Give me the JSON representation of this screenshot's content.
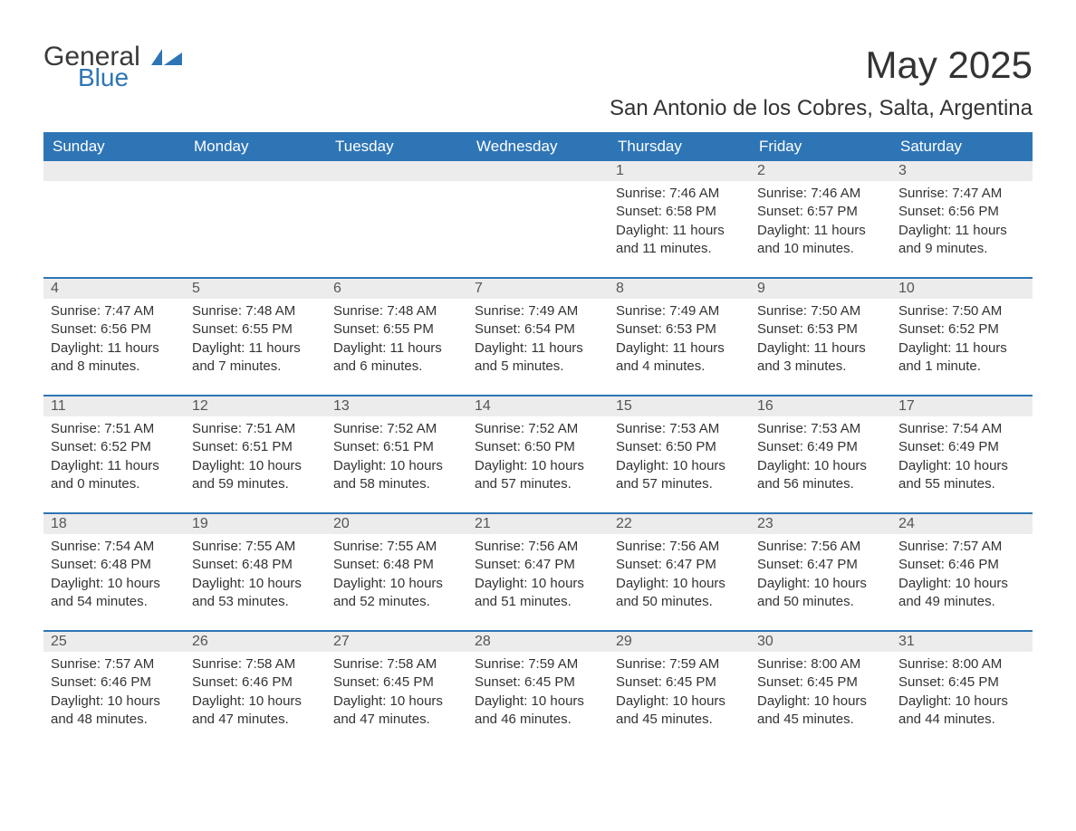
{
  "colors": {
    "header_bg": "#2e75b6",
    "header_text": "#ffffff",
    "daynum_bg": "#ececec",
    "daynum_text": "#555555",
    "body_text": "#333333",
    "row_border": "#2e75b6",
    "page_bg": "#ffffff",
    "logo_blue": "#2e75b6"
  },
  "typography": {
    "title_fontsize": 42,
    "subtitle_fontsize": 24,
    "weekday_fontsize": 17,
    "daynum_fontsize": 16,
    "body_fontsize": 15,
    "font_family": "Arial"
  },
  "logo": {
    "text1": "General",
    "text2": "Blue"
  },
  "title": "May 2025",
  "subtitle": "San Antonio de los Cobres, Salta, Argentina",
  "weekdays": [
    "Sunday",
    "Monday",
    "Tuesday",
    "Wednesday",
    "Thursday",
    "Friday",
    "Saturday"
  ],
  "weeks": [
    [
      {
        "n": "",
        "sunrise": "",
        "sunset": "",
        "daylight": ""
      },
      {
        "n": "",
        "sunrise": "",
        "sunset": "",
        "daylight": ""
      },
      {
        "n": "",
        "sunrise": "",
        "sunset": "",
        "daylight": ""
      },
      {
        "n": "",
        "sunrise": "",
        "sunset": "",
        "daylight": ""
      },
      {
        "n": "1",
        "sunrise": "Sunrise: 7:46 AM",
        "sunset": "Sunset: 6:58 PM",
        "daylight": "Daylight: 11 hours and 11 minutes."
      },
      {
        "n": "2",
        "sunrise": "Sunrise: 7:46 AM",
        "sunset": "Sunset: 6:57 PM",
        "daylight": "Daylight: 11 hours and 10 minutes."
      },
      {
        "n": "3",
        "sunrise": "Sunrise: 7:47 AM",
        "sunset": "Sunset: 6:56 PM",
        "daylight": "Daylight: 11 hours and 9 minutes."
      }
    ],
    [
      {
        "n": "4",
        "sunrise": "Sunrise: 7:47 AM",
        "sunset": "Sunset: 6:56 PM",
        "daylight": "Daylight: 11 hours and 8 minutes."
      },
      {
        "n": "5",
        "sunrise": "Sunrise: 7:48 AM",
        "sunset": "Sunset: 6:55 PM",
        "daylight": "Daylight: 11 hours and 7 minutes."
      },
      {
        "n": "6",
        "sunrise": "Sunrise: 7:48 AM",
        "sunset": "Sunset: 6:55 PM",
        "daylight": "Daylight: 11 hours and 6 minutes."
      },
      {
        "n": "7",
        "sunrise": "Sunrise: 7:49 AM",
        "sunset": "Sunset: 6:54 PM",
        "daylight": "Daylight: 11 hours and 5 minutes."
      },
      {
        "n": "8",
        "sunrise": "Sunrise: 7:49 AM",
        "sunset": "Sunset: 6:53 PM",
        "daylight": "Daylight: 11 hours and 4 minutes."
      },
      {
        "n": "9",
        "sunrise": "Sunrise: 7:50 AM",
        "sunset": "Sunset: 6:53 PM",
        "daylight": "Daylight: 11 hours and 3 minutes."
      },
      {
        "n": "10",
        "sunrise": "Sunrise: 7:50 AM",
        "sunset": "Sunset: 6:52 PM",
        "daylight": "Daylight: 11 hours and 1 minute."
      }
    ],
    [
      {
        "n": "11",
        "sunrise": "Sunrise: 7:51 AM",
        "sunset": "Sunset: 6:52 PM",
        "daylight": "Daylight: 11 hours and 0 minutes."
      },
      {
        "n": "12",
        "sunrise": "Sunrise: 7:51 AM",
        "sunset": "Sunset: 6:51 PM",
        "daylight": "Daylight: 10 hours and 59 minutes."
      },
      {
        "n": "13",
        "sunrise": "Sunrise: 7:52 AM",
        "sunset": "Sunset: 6:51 PM",
        "daylight": "Daylight: 10 hours and 58 minutes."
      },
      {
        "n": "14",
        "sunrise": "Sunrise: 7:52 AM",
        "sunset": "Sunset: 6:50 PM",
        "daylight": "Daylight: 10 hours and 57 minutes."
      },
      {
        "n": "15",
        "sunrise": "Sunrise: 7:53 AM",
        "sunset": "Sunset: 6:50 PM",
        "daylight": "Daylight: 10 hours and 57 minutes."
      },
      {
        "n": "16",
        "sunrise": "Sunrise: 7:53 AM",
        "sunset": "Sunset: 6:49 PM",
        "daylight": "Daylight: 10 hours and 56 minutes."
      },
      {
        "n": "17",
        "sunrise": "Sunrise: 7:54 AM",
        "sunset": "Sunset: 6:49 PM",
        "daylight": "Daylight: 10 hours and 55 minutes."
      }
    ],
    [
      {
        "n": "18",
        "sunrise": "Sunrise: 7:54 AM",
        "sunset": "Sunset: 6:48 PM",
        "daylight": "Daylight: 10 hours and 54 minutes."
      },
      {
        "n": "19",
        "sunrise": "Sunrise: 7:55 AM",
        "sunset": "Sunset: 6:48 PM",
        "daylight": "Daylight: 10 hours and 53 minutes."
      },
      {
        "n": "20",
        "sunrise": "Sunrise: 7:55 AM",
        "sunset": "Sunset: 6:48 PM",
        "daylight": "Daylight: 10 hours and 52 minutes."
      },
      {
        "n": "21",
        "sunrise": "Sunrise: 7:56 AM",
        "sunset": "Sunset: 6:47 PM",
        "daylight": "Daylight: 10 hours and 51 minutes."
      },
      {
        "n": "22",
        "sunrise": "Sunrise: 7:56 AM",
        "sunset": "Sunset: 6:47 PM",
        "daylight": "Daylight: 10 hours and 50 minutes."
      },
      {
        "n": "23",
        "sunrise": "Sunrise: 7:56 AM",
        "sunset": "Sunset: 6:47 PM",
        "daylight": "Daylight: 10 hours and 50 minutes."
      },
      {
        "n": "24",
        "sunrise": "Sunrise: 7:57 AM",
        "sunset": "Sunset: 6:46 PM",
        "daylight": "Daylight: 10 hours and 49 minutes."
      }
    ],
    [
      {
        "n": "25",
        "sunrise": "Sunrise: 7:57 AM",
        "sunset": "Sunset: 6:46 PM",
        "daylight": "Daylight: 10 hours and 48 minutes."
      },
      {
        "n": "26",
        "sunrise": "Sunrise: 7:58 AM",
        "sunset": "Sunset: 6:46 PM",
        "daylight": "Daylight: 10 hours and 47 minutes."
      },
      {
        "n": "27",
        "sunrise": "Sunrise: 7:58 AM",
        "sunset": "Sunset: 6:45 PM",
        "daylight": "Daylight: 10 hours and 47 minutes."
      },
      {
        "n": "28",
        "sunrise": "Sunrise: 7:59 AM",
        "sunset": "Sunset: 6:45 PM",
        "daylight": "Daylight: 10 hours and 46 minutes."
      },
      {
        "n": "29",
        "sunrise": "Sunrise: 7:59 AM",
        "sunset": "Sunset: 6:45 PM",
        "daylight": "Daylight: 10 hours and 45 minutes."
      },
      {
        "n": "30",
        "sunrise": "Sunrise: 8:00 AM",
        "sunset": "Sunset: 6:45 PM",
        "daylight": "Daylight: 10 hours and 45 minutes."
      },
      {
        "n": "31",
        "sunrise": "Sunrise: 8:00 AM",
        "sunset": "Sunset: 6:45 PM",
        "daylight": "Daylight: 10 hours and 44 minutes."
      }
    ]
  ]
}
